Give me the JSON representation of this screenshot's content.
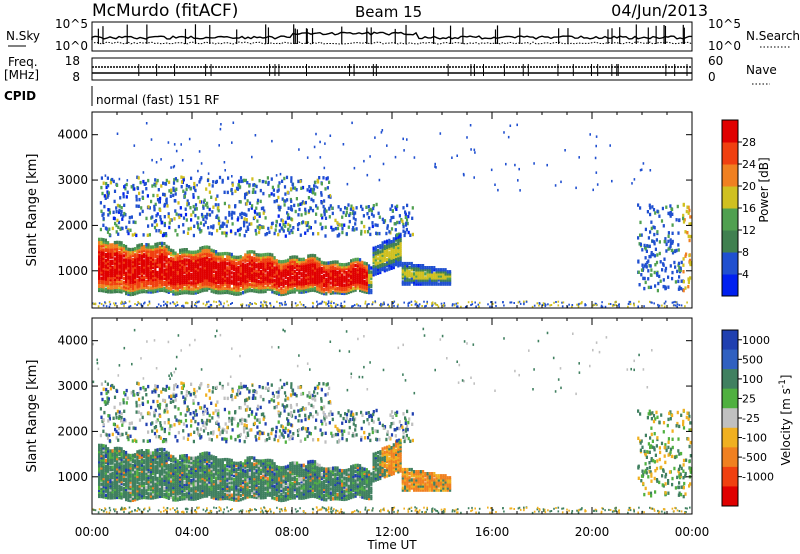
{
  "header": {
    "station": "McMurdo (fitACF)",
    "beam": "Beam 15",
    "date": "04/Jun/2013"
  },
  "top_panels": {
    "nsky": {
      "label": "N.Sky",
      "ticks": [
        "10^5",
        "10^0"
      ]
    },
    "nsearch": {
      "label": "N.Search",
      "ticks": [
        "10^5",
        "10^0"
      ]
    },
    "freq": {
      "label_line1": "Freq.",
      "label_line2": "[MHz]",
      "ticks": [
        "18",
        "8"
      ]
    },
    "nave": {
      "label": "Nave",
      "ticks": [
        "60",
        "0"
      ]
    },
    "cpid": {
      "label": "CPID",
      "mode": "normal (fast) 151 RF"
    }
  },
  "chart_data": [
    {
      "type": "heatmap",
      "panel": "power",
      "ylabel": "Slant Range [km]",
      "yticks": [
        "1000",
        "2000",
        "3000",
        "4000"
      ],
      "xticks": [
        "00:00",
        "04:00",
        "08:00",
        "12:00",
        "16:00",
        "20:00",
        "00:00"
      ],
      "ylim": [
        180,
        4500
      ],
      "colorbar": {
        "label": "Power [dB]",
        "ticks": [
          "4",
          "8",
          "12",
          "16",
          "20",
          "24",
          "28"
        ],
        "colors": [
          "#0020f0",
          "#2050d0",
          "#408050",
          "#50a050",
          "#d0c020",
          "#f08020",
          "#f04010",
          "#e00000"
        ]
      }
    },
    {
      "type": "heatmap",
      "panel": "velocity",
      "ylabel": "Slant Range [km]",
      "yticks": [
        "1000",
        "2000",
        "3000",
        "4000"
      ],
      "xticks": [
        "00:00",
        "04:00",
        "08:00",
        "12:00",
        "16:00",
        "20:00",
        "00:00"
      ],
      "xlabel": "Time UT",
      "ylim": [
        180,
        4500
      ],
      "colorbar": {
        "label": "Velocity [m s",
        "label_sup": "-1",
        "label_end": "]",
        "ticks": [
          "1000",
          "500",
          "100",
          "25",
          "-25",
          "-100",
          "-500",
          "-1000"
        ],
        "colors": [
          "#2040b0",
          "#3060c0",
          "#408060",
          "#50b040",
          "#c0c0c0",
          "#f0b020",
          "#f08020",
          "#f04010",
          "#e00000"
        ]
      }
    }
  ]
}
